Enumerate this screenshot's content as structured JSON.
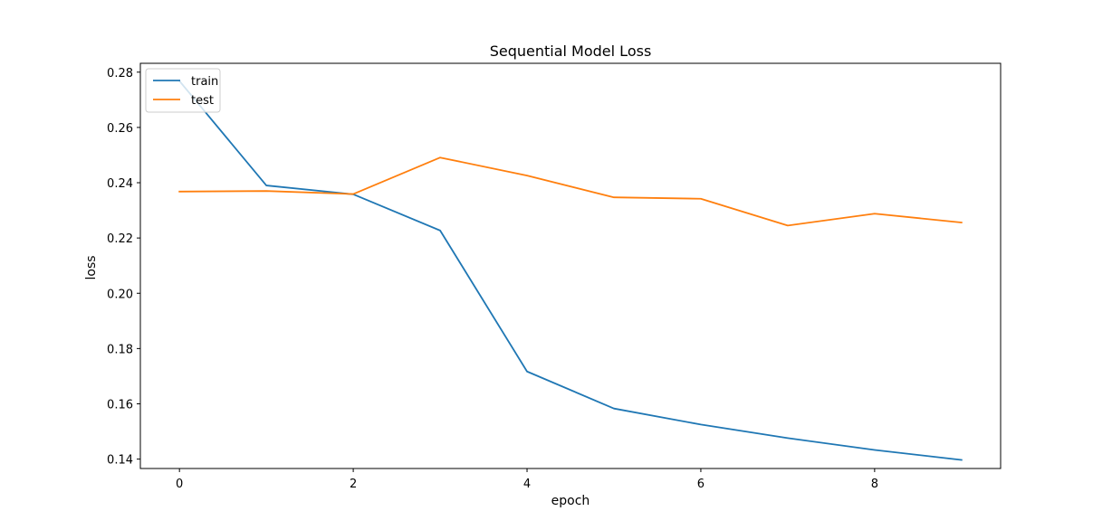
{
  "chart_data": {
    "type": "line",
    "title": "Sequential Model Loss",
    "xlabel": "epoch",
    "ylabel": "loss",
    "x": [
      0,
      1,
      2,
      3,
      4,
      5,
      6,
      7,
      8,
      9
    ],
    "xlim": [
      -0.45,
      9.45
    ],
    "ylim": [
      0.1366,
      0.2832
    ],
    "xticks": [
      0,
      2,
      4,
      6,
      8
    ],
    "yticks": [
      0.14,
      0.16,
      0.18,
      0.2,
      0.22,
      0.24,
      0.26,
      0.28
    ],
    "xtick_labels": [
      "0",
      "2",
      "4",
      "6",
      "8"
    ],
    "ytick_labels": [
      "0.14",
      "0.16",
      "0.18",
      "0.20",
      "0.22",
      "0.24",
      "0.26",
      "0.28"
    ],
    "grid": false,
    "legend_position": "top-left",
    "series": [
      {
        "name": "train",
        "color": "#1f77b4",
        "values": [
          0.2768,
          0.239,
          0.2358,
          0.2227,
          0.1717,
          0.1583,
          0.1525,
          0.1476,
          0.1433,
          0.1397
        ]
      },
      {
        "name": "test",
        "color": "#ff7f0e",
        "values": [
          0.2368,
          0.237,
          0.2359,
          0.2491,
          0.2426,
          0.2347,
          0.2342,
          0.2245,
          0.2288,
          0.2256
        ]
      }
    ]
  }
}
